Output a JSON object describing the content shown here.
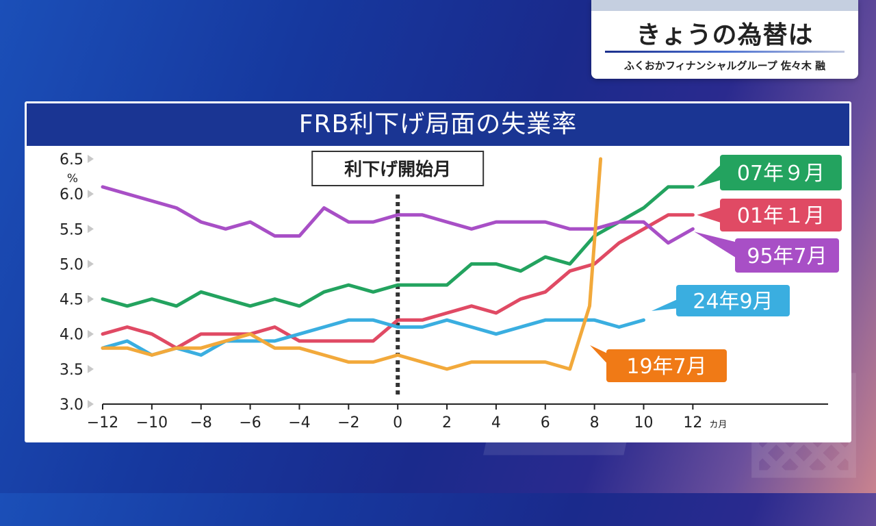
{
  "header": {
    "title": "きょうの為替は",
    "subtitle": "ふくおかフィナンシャルグループ 佐々木 融"
  },
  "chart_data": {
    "type": "line",
    "title": "FRB利下げ局面の失業率",
    "ylabel": "%",
    "xunit": "カ月",
    "annotation": "利下げ開始月",
    "ylim": [
      3.0,
      6.5
    ],
    "xlim": [
      -12,
      17.5
    ],
    "yticks": [
      6.5,
      6.0,
      5.5,
      5.0,
      4.5,
      4.0,
      3.5,
      3.0
    ],
    "ytick_labels": [
      "6.5",
      "6.0",
      "5.5",
      "5.0",
      "4.5",
      "4.0",
      "3.5",
      "3.0"
    ],
    "xticks": [
      -12,
      -10,
      -8,
      -6,
      -4,
      -2,
      0,
      2,
      4,
      6,
      8,
      10,
      12
    ],
    "xtick_labels": [
      "−12",
      "−10",
      "−8",
      "−6",
      "−4",
      "−2",
      "0",
      "2",
      "4",
      "6",
      "8",
      "10",
      "12"
    ],
    "grid": false,
    "series": [
      {
        "name": "07年９月",
        "color": "#23a35f",
        "x": [
          -12,
          -11,
          -10,
          -9,
          -8,
          -7,
          -6,
          -5,
          -4,
          -3,
          -2,
          -1,
          0,
          1,
          2,
          3,
          4,
          5,
          6,
          7,
          8,
          9,
          10,
          11,
          12
        ],
        "values": [
          4.5,
          4.4,
          4.5,
          4.4,
          4.6,
          4.5,
          4.4,
          4.5,
          4.4,
          4.6,
          4.7,
          4.6,
          4.7,
          4.7,
          4.7,
          5.0,
          5.0,
          4.9,
          5.1,
          5.0,
          5.4,
          5.6,
          5.8,
          6.1,
          6.1
        ]
      },
      {
        "name": "01年１月",
        "color": "#e04a64",
        "x": [
          -12,
          -11,
          -10,
          -9,
          -8,
          -7,
          -6,
          -5,
          -4,
          -3,
          -2,
          -1,
          0,
          1,
          2,
          3,
          4,
          5,
          6,
          7,
          8,
          9,
          10,
          11,
          12
        ],
        "values": [
          4.0,
          4.1,
          4.0,
          3.8,
          4.0,
          4.0,
          4.0,
          4.1,
          3.9,
          3.9,
          3.9,
          3.9,
          4.2,
          4.2,
          4.3,
          4.4,
          4.3,
          4.5,
          4.6,
          4.9,
          5.0,
          5.3,
          5.5,
          5.7,
          5.7
        ]
      },
      {
        "name": "95年7月",
        "color": "#a84fc6",
        "x": [
          -12,
          -11,
          -10,
          -9,
          -8,
          -7,
          -6,
          -5,
          -4,
          -3,
          -2,
          -1,
          0,
          1,
          2,
          3,
          4,
          5,
          6,
          7,
          8,
          9,
          10,
          11,
          12
        ],
        "values": [
          6.1,
          6.0,
          5.9,
          5.8,
          5.6,
          5.5,
          5.6,
          5.4,
          5.4,
          5.8,
          5.6,
          5.6,
          5.7,
          5.7,
          5.6,
          5.5,
          5.6,
          5.6,
          5.6,
          5.5,
          5.5,
          5.6,
          5.6,
          5.3,
          5.5
        ]
      },
      {
        "name": "24年9月",
        "color": "#3aaee0",
        "x": [
          -12,
          -11,
          -10,
          -9,
          -8,
          -7,
          -6,
          -5,
          -4,
          -3,
          -2,
          -1,
          0,
          1,
          2,
          3,
          4,
          5,
          6,
          7,
          8,
          9,
          10
        ],
        "values": [
          3.8,
          3.9,
          3.7,
          3.8,
          3.7,
          3.9,
          3.9,
          3.9,
          4.0,
          4.1,
          4.2,
          4.2,
          4.1,
          4.1,
          4.2,
          4.1,
          4.0,
          4.1,
          4.2,
          4.2,
          4.2,
          4.1,
          4.2
        ]
      },
      {
        "name": "19年7月",
        "color": "#f2a93b",
        "x": [
          -12,
          -11,
          -10,
          -9,
          -8,
          -7,
          -6,
          -5,
          -4,
          -3,
          -2,
          -1,
          0,
          1,
          2,
          3,
          4,
          5,
          6,
          7,
          7.8,
          8.25
        ],
        "values": [
          3.8,
          3.8,
          3.7,
          3.8,
          3.8,
          3.9,
          4.0,
          3.8,
          3.8,
          3.7,
          3.6,
          3.6,
          3.7,
          3.6,
          3.5,
          3.6,
          3.6,
          3.6,
          3.6,
          3.5,
          4.4,
          6.5
        ]
      }
    ]
  }
}
